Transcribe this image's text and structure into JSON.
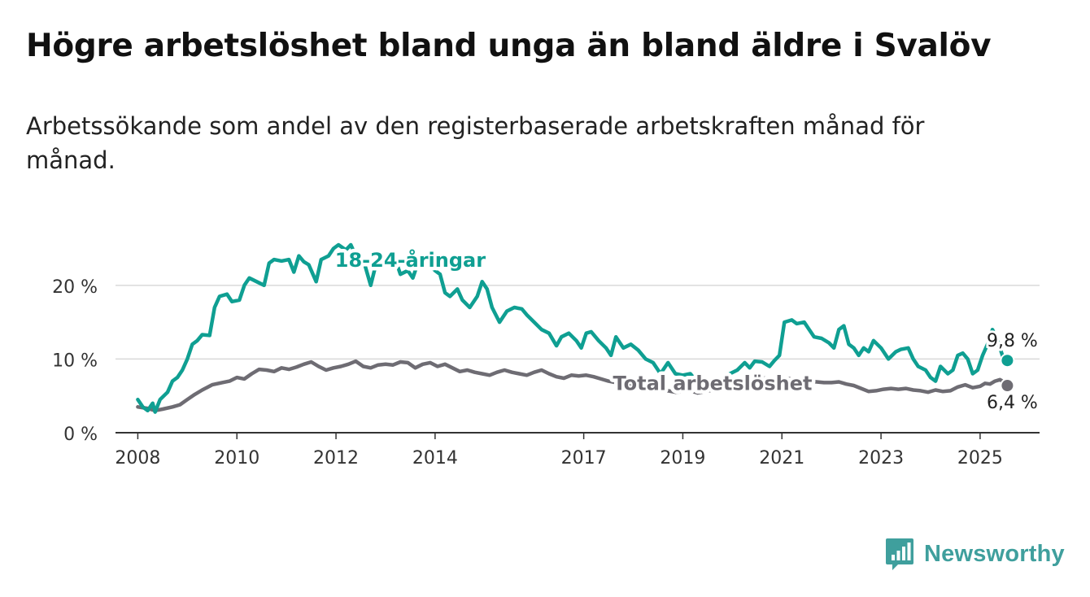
{
  "title": "Högre arbetslöshet bland unga än bland äldre i Svalöv",
  "subtitle": "Arbetssökande som andel av den registerbaserade arbetskraften månad för månad.",
  "brand": {
    "name": "Newsworthy",
    "icon": "bar-chart-logo-icon",
    "color": "#3f9f9d"
  },
  "chart_data": {
    "type": "line",
    "x_unit": "year",
    "xlim": [
      2007.55,
      2026.2
    ],
    "ylim": [
      0,
      25.5
    ],
    "yticks": [
      0,
      10,
      20
    ],
    "ytick_labels": [
      "0 %",
      "10 %",
      "20 %"
    ],
    "xticks": [
      2008,
      2010,
      2012,
      2014,
      2017,
      2019,
      2021,
      2023,
      2025
    ],
    "grid": true,
    "series": [
      {
        "name": "18-24-åringar",
        "color": "#0f9f92",
        "end_label": "9,8 %",
        "points": [
          [
            2008.0,
            4.5
          ],
          [
            2008.1,
            3.5
          ],
          [
            2008.2,
            3.0
          ],
          [
            2008.3,
            4.0
          ],
          [
            2008.35,
            2.8
          ],
          [
            2008.45,
            4.5
          ],
          [
            2008.6,
            5.5
          ],
          [
            2008.7,
            7.0
          ],
          [
            2008.8,
            7.5
          ],
          [
            2008.9,
            8.5
          ],
          [
            2009.0,
            10.0
          ],
          [
            2009.1,
            12.0
          ],
          [
            2009.2,
            12.5
          ],
          [
            2009.3,
            13.3
          ],
          [
            2009.45,
            13.2
          ],
          [
            2009.55,
            17.0
          ],
          [
            2009.65,
            18.5
          ],
          [
            2009.8,
            18.8
          ],
          [
            2009.9,
            17.8
          ],
          [
            2010.05,
            18.0
          ],
          [
            2010.15,
            20.0
          ],
          [
            2010.25,
            21.0
          ],
          [
            2010.4,
            20.5
          ],
          [
            2010.55,
            20.0
          ],
          [
            2010.65,
            23.0
          ],
          [
            2010.75,
            23.5
          ],
          [
            2010.9,
            23.3
          ],
          [
            2011.05,
            23.5
          ],
          [
            2011.15,
            21.8
          ],
          [
            2011.25,
            24.0
          ],
          [
            2011.35,
            23.2
          ],
          [
            2011.45,
            22.8
          ],
          [
            2011.6,
            20.5
          ],
          [
            2011.7,
            23.5
          ],
          [
            2011.85,
            24.0
          ],
          [
            2011.95,
            25.0
          ],
          [
            2012.05,
            25.5
          ],
          [
            2012.2,
            24.8
          ],
          [
            2012.3,
            25.5
          ],
          [
            2012.4,
            24.0
          ],
          [
            2012.55,
            23.5
          ],
          [
            2012.7,
            20.0
          ],
          [
            2012.85,
            24.0
          ],
          [
            2013.0,
            23.5
          ],
          [
            2013.15,
            24.5
          ],
          [
            2013.3,
            21.5
          ],
          [
            2013.45,
            22.0
          ],
          [
            2013.55,
            21.0
          ],
          [
            2013.7,
            24.0
          ],
          [
            2013.85,
            23.0
          ],
          [
            2014.0,
            22.0
          ],
          [
            2014.1,
            21.5
          ],
          [
            2014.2,
            19.0
          ],
          [
            2014.3,
            18.5
          ],
          [
            2014.45,
            19.5
          ],
          [
            2014.55,
            18.0
          ],
          [
            2014.7,
            17.0
          ],
          [
            2014.85,
            18.5
          ],
          [
            2014.95,
            20.5
          ],
          [
            2015.05,
            19.5
          ],
          [
            2015.15,
            17.0
          ],
          [
            2015.3,
            15.0
          ],
          [
            2015.45,
            16.5
          ],
          [
            2015.6,
            17.0
          ],
          [
            2015.75,
            16.8
          ],
          [
            2015.85,
            16.0
          ],
          [
            2016.0,
            15.0
          ],
          [
            2016.15,
            14.0
          ],
          [
            2016.3,
            13.5
          ],
          [
            2016.45,
            11.8
          ],
          [
            2016.55,
            13.0
          ],
          [
            2016.7,
            13.5
          ],
          [
            2016.85,
            12.5
          ],
          [
            2016.95,
            11.5
          ],
          [
            2017.05,
            13.5
          ],
          [
            2017.15,
            13.7
          ],
          [
            2017.3,
            12.5
          ],
          [
            2017.45,
            11.5
          ],
          [
            2017.55,
            10.5
          ],
          [
            2017.65,
            13.0
          ],
          [
            2017.8,
            11.5
          ],
          [
            2017.95,
            12.0
          ],
          [
            2018.1,
            11.2
          ],
          [
            2018.25,
            10.0
          ],
          [
            2018.4,
            9.5
          ],
          [
            2018.55,
            8.0
          ],
          [
            2018.7,
            9.5
          ],
          [
            2018.85,
            8.0
          ],
          [
            2019.0,
            7.8
          ],
          [
            2019.15,
            8.0
          ],
          [
            2019.3,
            6.8
          ],
          [
            2019.45,
            7.0
          ],
          [
            2019.65,
            6.5
          ],
          [
            2019.8,
            7.0
          ],
          [
            2019.95,
            8.0
          ],
          [
            2020.1,
            8.5
          ],
          [
            2020.25,
            9.5
          ],
          [
            2020.35,
            8.8
          ],
          [
            2020.45,
            9.7
          ],
          [
            2020.6,
            9.6
          ],
          [
            2020.75,
            9.0
          ],
          [
            2020.85,
            9.8
          ],
          [
            2020.95,
            10.5
          ],
          [
            2021.05,
            15.0
          ],
          [
            2021.2,
            15.3
          ],
          [
            2021.3,
            14.8
          ],
          [
            2021.45,
            15.0
          ],
          [
            2021.55,
            14.0
          ],
          [
            2021.65,
            13.0
          ],
          [
            2021.8,
            12.8
          ],
          [
            2021.95,
            12.2
          ],
          [
            2022.05,
            11.5
          ],
          [
            2022.15,
            14.0
          ],
          [
            2022.25,
            14.5
          ],
          [
            2022.35,
            12.0
          ],
          [
            2022.45,
            11.5
          ],
          [
            2022.55,
            10.5
          ],
          [
            2022.65,
            11.5
          ],
          [
            2022.75,
            11.0
          ],
          [
            2022.85,
            12.5
          ],
          [
            2023.0,
            11.5
          ],
          [
            2023.15,
            10.0
          ],
          [
            2023.3,
            11.0
          ],
          [
            2023.4,
            11.3
          ],
          [
            2023.55,
            11.5
          ],
          [
            2023.65,
            10.0
          ],
          [
            2023.75,
            9.0
          ],
          [
            2023.9,
            8.5
          ],
          [
            2024.0,
            7.5
          ],
          [
            2024.1,
            7.0
          ],
          [
            2024.2,
            9.0
          ],
          [
            2024.35,
            8.0
          ],
          [
            2024.45,
            8.5
          ],
          [
            2024.55,
            10.5
          ],
          [
            2024.65,
            10.8
          ],
          [
            2024.75,
            10.0
          ],
          [
            2024.85,
            8.0
          ],
          [
            2024.95,
            8.5
          ],
          [
            2025.05,
            10.5
          ],
          [
            2025.15,
            12.0
          ],
          [
            2025.25,
            14.0
          ],
          [
            2025.35,
            12.5
          ],
          [
            2025.45,
            10.5
          ],
          [
            2025.55,
            9.8
          ]
        ]
      },
      {
        "name": "Total arbetslöshet",
        "color": "#6e6c73",
        "end_label": "6,4 %",
        "points": [
          [
            2008.0,
            3.5
          ],
          [
            2008.2,
            3.3
          ],
          [
            2008.35,
            3.0
          ],
          [
            2008.5,
            3.2
          ],
          [
            2008.7,
            3.5
          ],
          [
            2008.85,
            3.8
          ],
          [
            2009.0,
            4.5
          ],
          [
            2009.15,
            5.2
          ],
          [
            2009.3,
            5.8
          ],
          [
            2009.5,
            6.5
          ],
          [
            2009.7,
            6.8
          ],
          [
            2009.85,
            7.0
          ],
          [
            2010.0,
            7.5
          ],
          [
            2010.15,
            7.3
          ],
          [
            2010.3,
            8.0
          ],
          [
            2010.45,
            8.6
          ],
          [
            2010.6,
            8.5
          ],
          [
            2010.75,
            8.3
          ],
          [
            2010.9,
            8.8
          ],
          [
            2011.05,
            8.6
          ],
          [
            2011.2,
            8.9
          ],
          [
            2011.35,
            9.3
          ],
          [
            2011.5,
            9.6
          ],
          [
            2011.65,
            9.0
          ],
          [
            2011.8,
            8.5
          ],
          [
            2011.95,
            8.8
          ],
          [
            2012.1,
            9.0
          ],
          [
            2012.25,
            9.3
          ],
          [
            2012.4,
            9.7
          ],
          [
            2012.55,
            9.0
          ],
          [
            2012.7,
            8.8
          ],
          [
            2012.85,
            9.2
          ],
          [
            2013.0,
            9.3
          ],
          [
            2013.15,
            9.2
          ],
          [
            2013.3,
            9.6
          ],
          [
            2013.45,
            9.5
          ],
          [
            2013.6,
            8.8
          ],
          [
            2013.75,
            9.3
          ],
          [
            2013.9,
            9.5
          ],
          [
            2014.05,
            9.0
          ],
          [
            2014.2,
            9.3
          ],
          [
            2014.35,
            8.8
          ],
          [
            2014.5,
            8.3
          ],
          [
            2014.65,
            8.5
          ],
          [
            2014.8,
            8.2
          ],
          [
            2014.95,
            8.0
          ],
          [
            2015.1,
            7.8
          ],
          [
            2015.25,
            8.2
          ],
          [
            2015.4,
            8.5
          ],
          [
            2015.55,
            8.2
          ],
          [
            2015.7,
            8.0
          ],
          [
            2015.85,
            7.8
          ],
          [
            2016.0,
            8.2
          ],
          [
            2016.15,
            8.5
          ],
          [
            2016.3,
            8.0
          ],
          [
            2016.45,
            7.6
          ],
          [
            2016.6,
            7.4
          ],
          [
            2016.75,
            7.8
          ],
          [
            2016.9,
            7.7
          ],
          [
            2017.05,
            7.8
          ],
          [
            2017.2,
            7.6
          ],
          [
            2017.35,
            7.3
          ],
          [
            2017.5,
            7.0
          ],
          [
            2017.65,
            6.8
          ],
          [
            2017.8,
            6.5
          ],
          [
            2017.95,
            6.3
          ],
          [
            2018.1,
            6.0
          ],
          [
            2018.25,
            6.2
          ],
          [
            2018.4,
            5.8
          ],
          [
            2018.55,
            5.6
          ],
          [
            2018.7,
            5.7
          ],
          [
            2018.85,
            5.5
          ],
          [
            2019.0,
            5.6
          ],
          [
            2019.15,
            5.7
          ],
          [
            2019.3,
            5.4
          ],
          [
            2019.45,
            5.6
          ],
          [
            2019.6,
            5.8
          ],
          [
            2019.75,
            5.7
          ],
          [
            2019.9,
            6.0
          ],
          [
            2020.05,
            6.5
          ],
          [
            2020.2,
            7.0
          ],
          [
            2020.35,
            7.3
          ],
          [
            2020.5,
            7.5
          ],
          [
            2020.65,
            7.4
          ],
          [
            2020.8,
            7.3
          ],
          [
            2020.95,
            7.6
          ],
          [
            2021.1,
            7.4
          ],
          [
            2021.25,
            7.2
          ],
          [
            2021.4,
            7.1
          ],
          [
            2021.55,
            7.0
          ],
          [
            2021.7,
            6.9
          ],
          [
            2021.85,
            6.8
          ],
          [
            2022.0,
            6.8
          ],
          [
            2022.15,
            6.9
          ],
          [
            2022.3,
            6.6
          ],
          [
            2022.45,
            6.4
          ],
          [
            2022.6,
            6.0
          ],
          [
            2022.75,
            5.6
          ],
          [
            2022.9,
            5.7
          ],
          [
            2023.05,
            5.9
          ],
          [
            2023.2,
            6.0
          ],
          [
            2023.35,
            5.9
          ],
          [
            2023.5,
            6.0
          ],
          [
            2023.65,
            5.8
          ],
          [
            2023.8,
            5.7
          ],
          [
            2023.95,
            5.5
          ],
          [
            2024.1,
            5.8
          ],
          [
            2024.25,
            5.6
          ],
          [
            2024.4,
            5.7
          ],
          [
            2024.55,
            6.2
          ],
          [
            2024.7,
            6.5
          ],
          [
            2024.85,
            6.1
          ],
          [
            2025.0,
            6.3
          ],
          [
            2025.1,
            6.7
          ],
          [
            2025.2,
            6.6
          ],
          [
            2025.3,
            7.0
          ],
          [
            2025.4,
            7.2
          ],
          [
            2025.5,
            6.8
          ],
          [
            2025.55,
            6.4
          ]
        ]
      }
    ]
  }
}
